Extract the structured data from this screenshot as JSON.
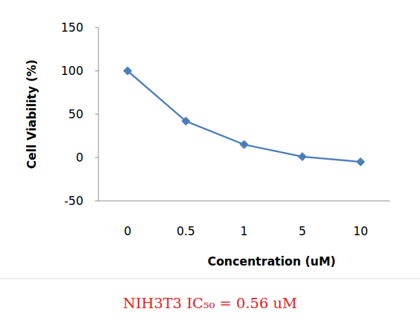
{
  "chart_data": {
    "type": "line",
    "title": "NIH3T3 IC₅₀ = 0.56 uM",
    "x_label": "Concentration (uM)",
    "y_label": "Cell Viability (%)",
    "categories": [
      "0",
      "0.5",
      "1",
      "5",
      "10"
    ],
    "values": [
      100,
      42,
      15,
      1,
      -5
    ],
    "color": "#4a7ebb",
    "marker": "diamond",
    "line_style": "solid",
    "ylim": [
      -50,
      150
    ],
    "yticks": [
      -50,
      0,
      50,
      100,
      150
    ],
    "grid": false
  }
}
